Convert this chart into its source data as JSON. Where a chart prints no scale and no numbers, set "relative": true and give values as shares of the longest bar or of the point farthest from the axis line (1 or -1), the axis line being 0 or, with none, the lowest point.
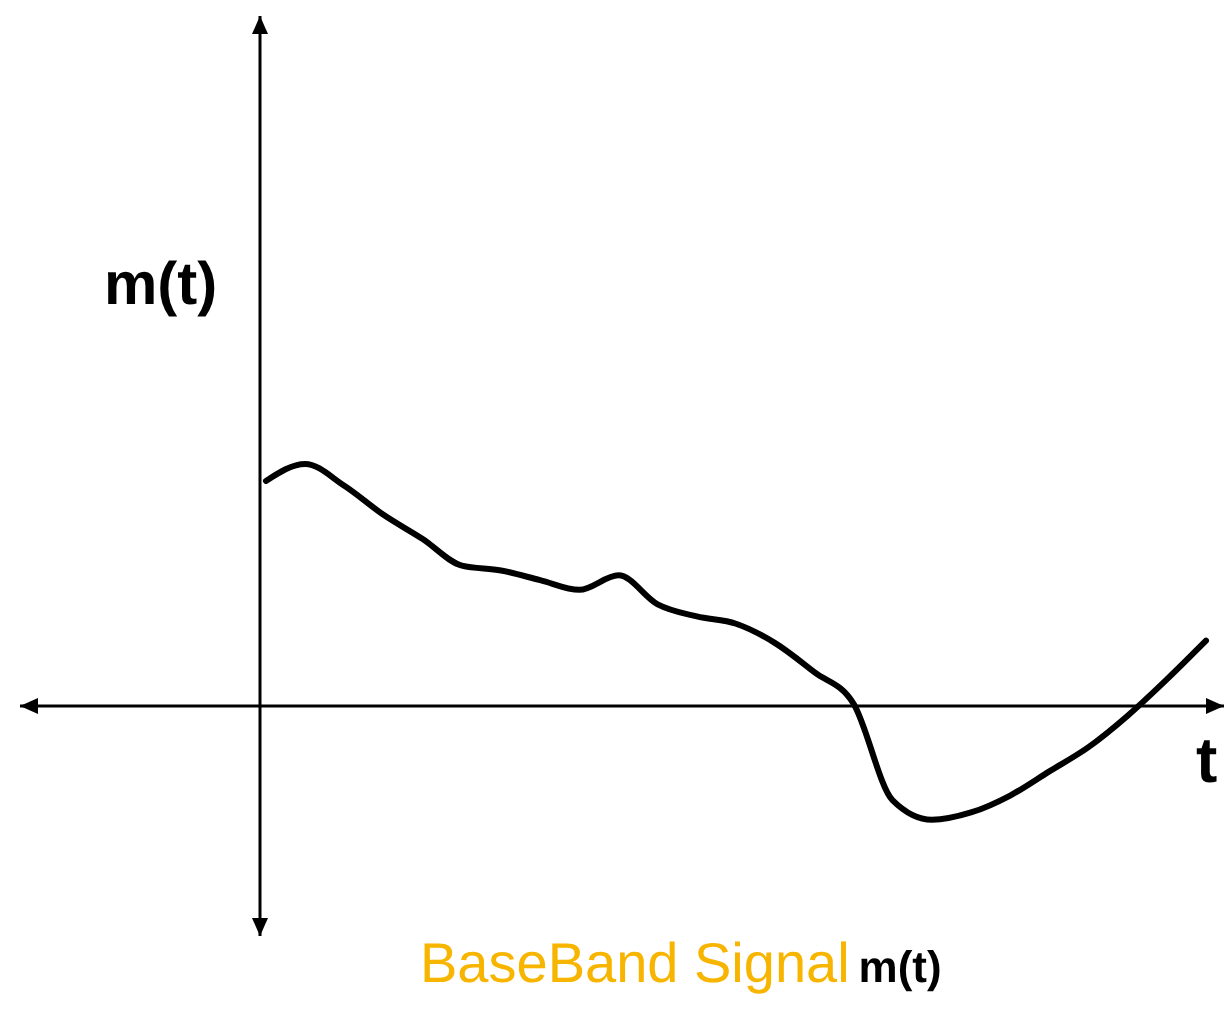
{
  "chart_data": {
    "type": "line",
    "relative": true,
    "xlabel": "t",
    "ylabel": "m(t)",
    "title": "BaseBand Signal",
    "annotations": [
      "m(t)"
    ],
    "categories": [
      null,
      null,
      null,
      null,
      null,
      null,
      null,
      null,
      null,
      null,
      null,
      null,
      null,
      null,
      null,
      null,
      null,
      null,
      null,
      null,
      null,
      null,
      null,
      null,
      null
    ],
    "series": [
      {
        "color": "#000000",
        "values": [
          0.93,
          1.0,
          0.91,
          0.79,
          0.69,
          0.58,
          0.56,
          0.52,
          0.48,
          0.54,
          0.42,
          0.37,
          0.34,
          0.26,
          0.14,
          0.01,
          -0.39,
          -0.47,
          -0.44,
          -0.37,
          -0.27,
          -0.17,
          -0.04,
          0.11,
          0.27
        ]
      }
    ]
  }
}
